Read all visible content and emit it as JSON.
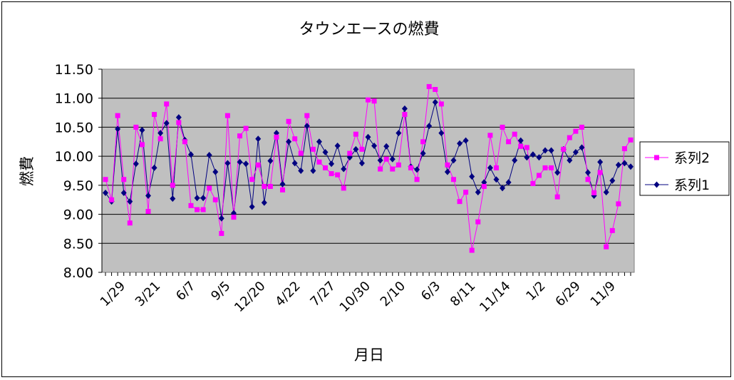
{
  "chart_data": {
    "type": "line",
    "title": "タウンエースの燃費",
    "xlabel": "月日",
    "ylabel": "燃費",
    "ylim": [
      8.0,
      11.5
    ],
    "yticks": [
      "8.00",
      "8.50",
      "9.00",
      "9.50",
      "10.00",
      "10.50",
      "11.00",
      "11.50"
    ],
    "xtick_labels": [
      "1/29",
      "3/21",
      "6/7",
      "9/5",
      "12/20",
      "4/22",
      "7/27",
      "10/30",
      "2/10",
      "6/3",
      "8/11",
      "11/14",
      "1/2",
      "6/29",
      "11/9"
    ],
    "grid": true,
    "legend_position": "right",
    "series": [
      {
        "name": "系列2",
        "color": "#ff00ff",
        "marker": "square",
        "values": [
          9.6,
          9.25,
          10.7,
          9.6,
          8.85,
          10.5,
          10.2,
          9.05,
          10.72,
          10.3,
          10.9,
          9.5,
          10.58,
          10.25,
          9.15,
          9.08,
          9.08,
          9.45,
          9.25,
          8.67,
          10.7,
          8.95,
          10.35,
          10.48,
          9.6,
          9.85,
          9.48,
          9.48,
          10.33,
          9.42,
          10.6,
          10.3,
          10.05,
          10.7,
          10.12,
          9.9,
          9.8,
          9.7,
          9.68,
          9.45,
          10.05,
          10.38,
          10.12,
          10.97,
          10.95,
          9.78,
          9.95,
          9.78,
          9.85,
          10.72,
          9.8,
          9.6,
          10.25,
          11.2,
          11.15,
          10.9,
          9.85,
          9.6,
          9.22,
          9.38,
          8.38,
          8.87,
          9.48,
          10.36,
          9.8,
          10.5,
          10.25,
          10.38,
          10.17,
          10.15,
          9.53,
          9.67,
          9.8,
          9.8,
          9.3,
          10.12,
          10.32,
          10.43,
          10.5,
          9.6,
          9.37,
          9.72,
          8.44,
          8.72,
          9.18,
          10.13,
          10.28
        ]
      },
      {
        "name": "系列1",
        "color": "#000080",
        "marker": "diamond",
        "values": [
          9.37,
          9.22,
          10.47,
          9.37,
          9.22,
          9.87,
          10.45,
          9.32,
          9.8,
          10.4,
          10.57,
          9.27,
          10.67,
          10.28,
          10.03,
          9.28,
          9.28,
          10.02,
          9.73,
          8.93,
          9.88,
          9.02,
          9.9,
          9.87,
          9.13,
          10.3,
          9.2,
          9.92,
          10.4,
          9.52,
          10.25,
          9.88,
          9.75,
          10.52,
          9.75,
          10.25,
          10.07,
          9.87,
          10.18,
          9.78,
          9.98,
          10.12,
          9.88,
          10.33,
          10.18,
          9.93,
          10.17,
          9.95,
          10.4,
          10.82,
          9.82,
          9.77,
          10.05,
          10.52,
          10.93,
          10.4,
          9.73,
          9.93,
          10.22,
          10.27,
          9.65,
          9.38,
          9.55,
          9.8,
          9.6,
          9.45,
          9.55,
          9.93,
          10.27,
          9.98,
          10.03,
          9.98,
          10.1,
          10.1,
          9.72,
          10.12,
          9.93,
          10.07,
          10.15,
          9.72,
          9.32,
          9.9,
          9.38,
          9.58,
          9.85,
          9.88,
          9.82
        ]
      }
    ]
  }
}
